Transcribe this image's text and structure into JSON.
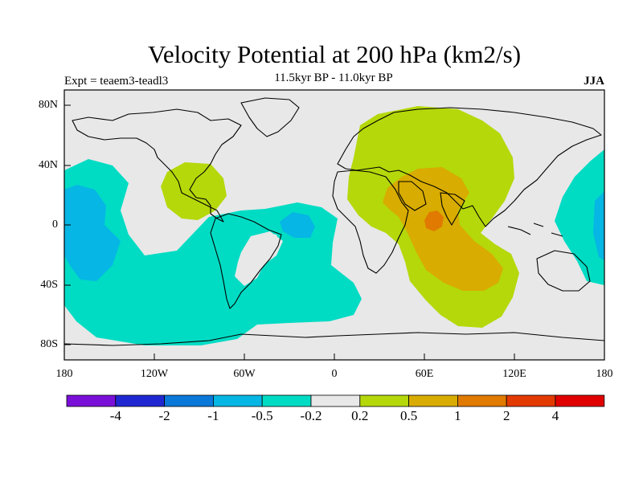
{
  "title": "Velocity Potential at 200 hPa (km2/s)",
  "subtitle": "11.5kyr BP - 11.0kyr BP",
  "experiment": "Expt = teaem3-teadl3",
  "season": "JJA",
  "axes": {
    "y_ticks": [
      "80N",
      "40N",
      "0",
      "40S",
      "80S"
    ],
    "x_ticks": [
      "180",
      "120W",
      "60W",
      "0",
      "60E",
      "120E",
      "180"
    ]
  },
  "colorbar": {
    "colors": [
      "#7a10d8",
      "#1f28d0",
      "#0a78d8",
      "#06b6e4",
      "#00dcc4",
      "#e8e8e8",
      "#b4d80a",
      "#d8ac00",
      "#e07a00",
      "#e23a00",
      "#e00000"
    ],
    "labels": [
      "-4",
      "-2",
      "-1",
      "-0.5",
      "-0.2",
      "0.2",
      "0.5",
      "1",
      "2",
      "4"
    ]
  },
  "regions": [
    {
      "name": "positive-north-africa-eurasia",
      "level": "0.2 to 0.5",
      "color": "#b4d80a"
    },
    {
      "name": "positive-arabia-indian-ocean",
      "level": "0.5 to 1",
      "color": "#d8ac00"
    },
    {
      "name": "positive-arabian-sea",
      "level": "1 to 2",
      "color": "#e07a00"
    },
    {
      "name": "positive-gulf-of-mexico",
      "level": "0.2 to 0.5",
      "color": "#b4d80a"
    },
    {
      "name": "negative-pacific-atlantic",
      "level": "-0.5 to -0.2",
      "color": "#00dcc4"
    },
    {
      "name": "negative-central-pacific",
      "level": "-1 to -0.5",
      "color": "#06b6e4"
    }
  ]
}
